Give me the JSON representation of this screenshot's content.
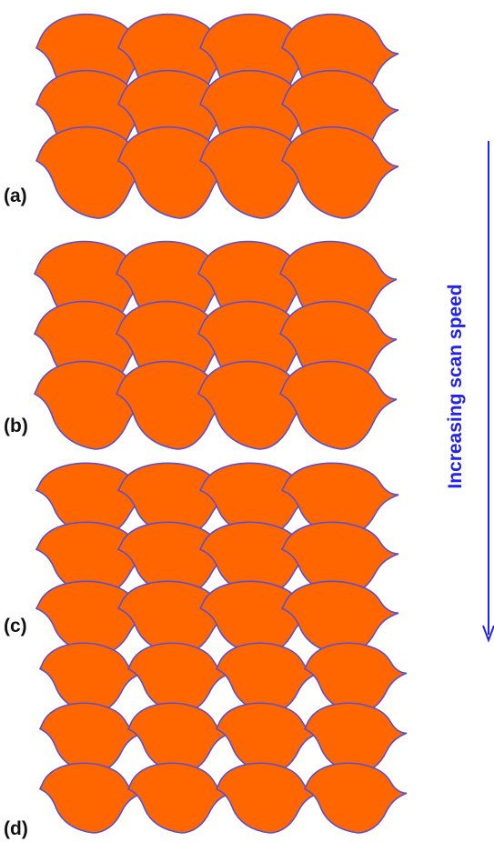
{
  "panels": [
    {
      "label": "(a)"
    },
    {
      "label": "(b)"
    },
    {
      "label": "(c)"
    },
    {
      "label": "(d)"
    }
  ],
  "arrow_label": "Increasing scan speed"
}
